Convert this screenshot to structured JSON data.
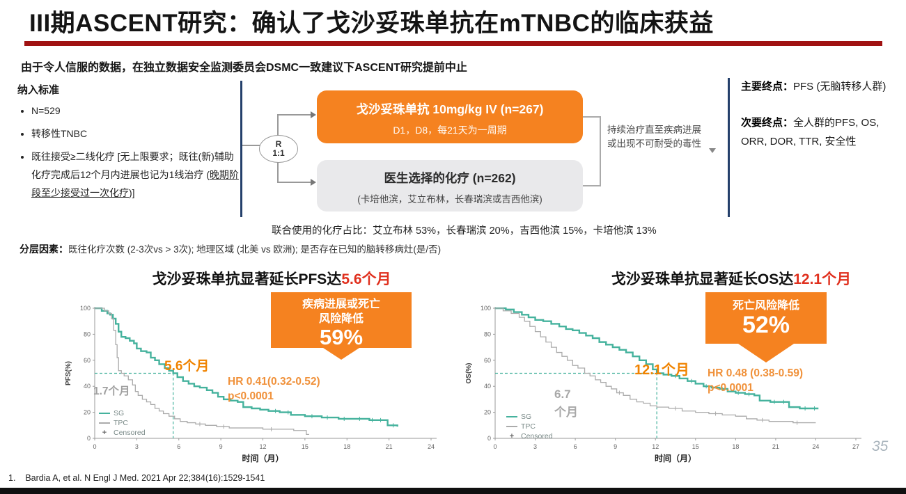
{
  "slide": {
    "title": "III期ASCENT研究：确认了戈沙妥珠单抗在mTNBC的临床获益",
    "subtitle": "由于令人信服的数据，在独立数据安全监测委员会DSMC一致建议下ASCENT研究提前中止",
    "footnote": "1.    Bardia A, et al. N Engl J Med. 2021 Apr 22;384(16):1529-1541",
    "page_number": "35"
  },
  "colors": {
    "orange": "#F58220",
    "red_accent": "#E0301E",
    "navy": "#24406B",
    "teal": "#45B29D",
    "gray_curve": "#ABABAB",
    "rule_red": "#A01212"
  },
  "criteria": {
    "header": "纳入标准",
    "item1": "N=529",
    "item2": "转移性TNBC",
    "item3_pre": "既往接受≥二线化疗 [无上限要求；既往(新)辅助化疗完成后12个月内进展也记为1线治疗 (",
    "item3_underline": "晚期阶段至少接受过一次化疗",
    "item3_post": ")]"
  },
  "randomization": {
    "r": "R",
    "ratio": "1:1"
  },
  "arms": {
    "sg_title": "戈沙妥珠单抗 10mg/kg IV (n=267)",
    "sg_sub": "D1，D8，每21天为一周期",
    "tpc_title": "医生选择的化疗 (n=262)",
    "tpc_sub": "(卡培他滨，艾立布林，长春瑞滨或吉西他滨)"
  },
  "treatment_note": {
    "line1": "持续治疗直至疾病进展",
    "line2": "或出现不可耐受的毒性"
  },
  "endpoints": {
    "primary_label": "主要终点：",
    "primary_value": "PFS (无脑转移人群)",
    "secondary_label": "次要终点：",
    "secondary_value": "全人群的PFS, OS, ORR, DOR, TTR, 安全性"
  },
  "combo_note": "联合使用的化疗占比：艾立布林 53%，长春瑞滨 20%，吉西他滨 15%，卡培他滨 13%",
  "stratification": {
    "label": "分层因素：",
    "value": "既往化疗次数 (2-3次vs > 3次); 地理区域 (北美 vs 欧洲); 是否存在已知的脑转移病灶(是/否)"
  },
  "chart_data": [
    {
      "id": "pfs",
      "type": "line",
      "title_black": "戈沙妥珠单抗显著延长PFS达",
      "title_red": "5.6个月",
      "badge_line1": "疾病进展或死亡",
      "badge_line2": "风险降低",
      "badge_value": "59%",
      "ylabel": "PFS(%)",
      "xlabel": "时间（月）",
      "xlim": [
        0,
        24
      ],
      "ylim": [
        0,
        100
      ],
      "xticks": [
        0,
        3,
        6,
        9,
        12,
        15,
        18,
        21,
        24
      ],
      "yticks": [
        0,
        20,
        40,
        60,
        80,
        100
      ],
      "median_line": 5.6,
      "median_color": "#45B29D",
      "annotations": {
        "sg_median": "5.6个月",
        "tpc_median": "1.7个月",
        "hr_line1": "HR 0.41(0.32-0.52)",
        "hr_line2": "p<0.0001"
      },
      "legend": [
        "SG",
        "TPC",
        "Censored"
      ],
      "series": [
        {
          "name": "SG",
          "color": "#45B29D",
          "points": [
            [
              0,
              100
            ],
            [
              0.5,
              98
            ],
            [
              0.9,
              96
            ],
            [
              1.1,
              95
            ],
            [
              1.3,
              92
            ],
            [
              1.5,
              88
            ],
            [
              1.7,
              82
            ],
            [
              1.9,
              78
            ],
            [
              2.2,
              77
            ],
            [
              2.5,
              75
            ],
            [
              2.8,
              73
            ],
            [
              3.0,
              69
            ],
            [
              3.3,
              67
            ],
            [
              3.7,
              66
            ],
            [
              4.0,
              62
            ],
            [
              4.3,
              60
            ],
            [
              4.6,
              57
            ],
            [
              5.0,
              54
            ],
            [
              5.3,
              52
            ],
            [
              5.6,
              50
            ],
            [
              5.9,
              47
            ],
            [
              6.3,
              44
            ],
            [
              6.7,
              42
            ],
            [
              7.1,
              40
            ],
            [
              7.5,
              39
            ],
            [
              8.0,
              37
            ],
            [
              8.4,
              35
            ],
            [
              8.8,
              32
            ],
            [
              9.2,
              30
            ],
            [
              9.7,
              29
            ],
            [
              10.2,
              28
            ],
            [
              10.6,
              24
            ],
            [
              11.2,
              23
            ],
            [
              11.8,
              22
            ],
            [
              12.4,
              21
            ],
            [
              13.2,
              20
            ],
            [
              14.0,
              18
            ],
            [
              15.0,
              17
            ],
            [
              16.2,
              16
            ],
            [
              17.4,
              15
            ],
            [
              18.6,
              15
            ],
            [
              19.6,
              14
            ],
            [
              20.6,
              14
            ],
            [
              20.9,
              10
            ],
            [
              21.6,
              9
            ]
          ],
          "censored_x": [
            12.9,
            13.8,
            15.5,
            16.6,
            17.8,
            18.9,
            19.8,
            20.4,
            21.3
          ]
        },
        {
          "name": "TPC",
          "color": "#ABABAB",
          "points": [
            [
              0,
              100
            ],
            [
              0.7,
              98
            ],
            [
              1.0,
              96
            ],
            [
              1.2,
              92
            ],
            [
              1.35,
              83
            ],
            [
              1.5,
              72
            ],
            [
              1.6,
              62
            ],
            [
              1.7,
              52
            ],
            [
              1.9,
              50
            ],
            [
              2.1,
              48
            ],
            [
              2.4,
              45
            ],
            [
              2.7,
              41
            ],
            [
              2.9,
              36
            ],
            [
              3.1,
              33
            ],
            [
              3.4,
              30
            ],
            [
              3.7,
              28
            ],
            [
              4.0,
              26
            ],
            [
              4.3,
              23
            ],
            [
              4.6,
              21
            ],
            [
              4.9,
              19
            ],
            [
              5.3,
              17
            ],
            [
              5.7,
              15
            ],
            [
              6.1,
              13
            ],
            [
              6.6,
              12
            ],
            [
              7.2,
              11
            ],
            [
              7.9,
              10
            ],
            [
              8.7,
              9
            ],
            [
              9.6,
              8
            ],
            [
              10.8,
              8
            ],
            [
              12.0,
              7
            ],
            [
              13.2,
              7
            ],
            [
              14.2,
              6
            ],
            [
              15.0,
              6
            ],
            [
              15.1,
              3
            ],
            [
              15.3,
              3
            ]
          ],
          "censored_x": [
            7.5,
            9.2,
            12.6
          ]
        }
      ]
    },
    {
      "id": "os",
      "type": "line",
      "title_black": "戈沙妥珠单抗显著延长OS达",
      "title_red": "12.1个月",
      "badge_line1": "死亡风险降低",
      "badge_value": "52%",
      "ylabel": "OS(%)",
      "xlabel": "时间（月）",
      "xlim": [
        0,
        27
      ],
      "ylim": [
        0,
        100
      ],
      "xticks": [
        0,
        3,
        6,
        9,
        12,
        15,
        18,
        21,
        24,
        27
      ],
      "yticks": [
        0,
        20,
        40,
        60,
        80,
        100
      ],
      "median_line": 12.1,
      "median_color": "#45B29D",
      "annotations": {
        "sg_median": "12.1个月",
        "tpc_median_line1": "6.7",
        "tpc_median_line2": "个月",
        "hr_line1": "HR 0.48 (0.38-0.59)",
        "hr_line2": "p<0.0001"
      },
      "legend": [
        "SG",
        "TPC",
        "Censored"
      ],
      "series": [
        {
          "name": "SG",
          "color": "#45B29D",
          "points": [
            [
              0,
              100
            ],
            [
              0.8,
              99
            ],
            [
              1.4,
              97
            ],
            [
              2.0,
              95
            ],
            [
              2.5,
              93
            ],
            [
              3.0,
              91
            ],
            [
              3.6,
              90
            ],
            [
              4.2,
              88
            ],
            [
              4.8,
              86
            ],
            [
              5.3,
              84
            ],
            [
              5.8,
              83
            ],
            [
              6.3,
              81
            ],
            [
              6.8,
              79
            ],
            [
              7.3,
              77
            ],
            [
              7.8,
              74
            ],
            [
              8.3,
              72
            ],
            [
              8.8,
              70
            ],
            [
              9.3,
              68
            ],
            [
              9.8,
              66
            ],
            [
              10.3,
              63
            ],
            [
              10.8,
              60
            ],
            [
              11.3,
              57
            ],
            [
              11.8,
              53
            ],
            [
              12.1,
              50
            ],
            [
              12.6,
              49
            ],
            [
              13.2,
              48
            ],
            [
              13.8,
              46
            ],
            [
              14.4,
              44
            ],
            [
              15.0,
              42
            ],
            [
              15.6,
              40
            ],
            [
              16.2,
              39
            ],
            [
              16.8,
              38
            ],
            [
              17.4,
              36
            ],
            [
              18.0,
              35
            ],
            [
              18.7,
              34
            ],
            [
              19.4,
              33
            ],
            [
              19.8,
              29
            ],
            [
              20.6,
              28
            ],
            [
              21.4,
              28
            ],
            [
              22.0,
              24
            ],
            [
              22.8,
              23
            ],
            [
              23.6,
              23
            ],
            [
              24.2,
              23
            ]
          ],
          "censored_x": [
            13.5,
            14.7,
            15.8,
            17.0,
            18.2,
            19.0,
            20.9,
            21.6,
            23.2,
            23.9
          ]
        },
        {
          "name": "TPC",
          "color": "#ABABAB",
          "points": [
            [
              0,
              100
            ],
            [
              0.6,
              98
            ],
            [
              1.2,
              96
            ],
            [
              1.8,
              93
            ],
            [
              2.2,
              90
            ],
            [
              2.6,
              86
            ],
            [
              3.0,
              82
            ],
            [
              3.4,
              78
            ],
            [
              3.8,
              74
            ],
            [
              4.2,
              70
            ],
            [
              4.6,
              66
            ],
            [
              5.0,
              63
            ],
            [
              5.4,
              60
            ],
            [
              5.8,
              56
            ],
            [
              6.2,
              54
            ],
            [
              6.7,
              50
            ],
            [
              7.1,
              48
            ],
            [
              7.5,
              45
            ],
            [
              7.9,
              43
            ],
            [
              8.3,
              40
            ],
            [
              8.7,
              38
            ],
            [
              9.1,
              35
            ],
            [
              9.6,
              33
            ],
            [
              10.1,
              30
            ],
            [
              10.6,
              28
            ],
            [
              11.1,
              27
            ],
            [
              11.6,
              25
            ],
            [
              12.1,
              24
            ],
            [
              13.0,
              23
            ],
            [
              14.0,
              21
            ],
            [
              15.0,
              20
            ],
            [
              16.0,
              19
            ],
            [
              17.0,
              18
            ],
            [
              18.0,
              17
            ],
            [
              18.8,
              15
            ],
            [
              19.6,
              14
            ],
            [
              20.5,
              13
            ],
            [
              21.5,
              13
            ],
            [
              22.3,
              12
            ],
            [
              23.2,
              12
            ],
            [
              24.0,
              12
            ]
          ],
          "censored_x": [
            9.3,
            13.5,
            16.5,
            20.0,
            22.6
          ]
        }
      ]
    }
  ]
}
